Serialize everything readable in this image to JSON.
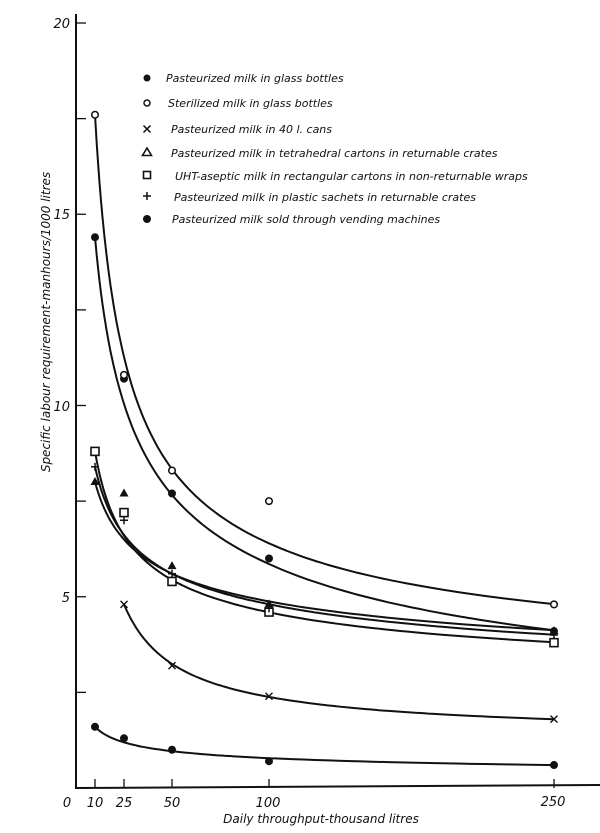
{
  "chart_data": {
    "type": "scatter",
    "title": "",
    "xlabel": "Daily throughput-thousand litres",
    "ylabel": "Specific labour requirement-manhours/1000 litres",
    "xlim": [
      0,
      260
    ],
    "ylim": [
      0,
      20
    ],
    "x_ticks": [
      0,
      10,
      25,
      50,
      100,
      250
    ],
    "x_tick_labels": [
      "0",
      "10",
      "25",
      "50",
      "100",
      "250"
    ],
    "y_ticks": [
      0,
      2.5,
      5,
      7.5,
      10,
      12.5,
      15,
      17.5,
      20
    ],
    "y_tick_labels": [
      "0",
      "",
      "5",
      "",
      "10",
      "",
      "15",
      "",
      "20"
    ],
    "y_minor_ticks": [
      1,
      2,
      3,
      4,
      6,
      7,
      8,
      9,
      11,
      12,
      13,
      14,
      16,
      17,
      18,
      19
    ],
    "grid": false,
    "legend_position": "upper-center",
    "fitted_curves": true,
    "series": [
      {
        "name": "Pasteurized milk in glass bottles",
        "marker": "filled-circle",
        "x": [
          10,
          25,
          50,
          100,
          250
        ],
        "values": [
          14.4,
          10.7,
          7.7,
          6.0,
          4.1
        ]
      },
      {
        "name": "Sterilized milk in glass bottles",
        "marker": "open-circle",
        "x": [
          10,
          25,
          50,
          100,
          250
        ],
        "values": [
          17.6,
          10.8,
          8.3,
          7.5,
          4.8
        ]
      },
      {
        "name": "Pasteurized milk in 40 l. cans",
        "marker": "x",
        "x": [
          25,
          50,
          100,
          250
        ],
        "values": [
          4.8,
          3.2,
          2.4,
          1.8
        ]
      },
      {
        "name": "Pasteurized milk in tetrahedral cartons in returnable crates",
        "marker": "filled-triangle",
        "x": [
          10,
          25,
          50,
          100,
          250
        ],
        "values": [
          8.0,
          7.7,
          5.8,
          4.8,
          4.1
        ]
      },
      {
        "name": "UHT-aseptic milk in rectangular cartons in non-returnable wraps",
        "marker": "open-square",
        "x": [
          10,
          25,
          50,
          100,
          250
        ],
        "values": [
          8.8,
          7.2,
          5.4,
          4.6,
          3.8
        ]
      },
      {
        "name": "Pasteurized milk in plastic sachets in returnable crates",
        "marker": "plus",
        "x": [
          10,
          25,
          50,
          100,
          250
        ],
        "values": [
          8.4,
          7.0,
          5.6,
          4.7,
          4.0
        ]
      },
      {
        "name": "Pasteurized milk sold through vending machines",
        "marker": "filled-circle",
        "x": [
          10,
          25,
          50,
          100,
          250
        ],
        "values": [
          1.6,
          1.3,
          1.0,
          0.7,
          0.6
        ]
      }
    ]
  },
  "legend": {
    "items": [
      {
        "symbol": "filled-circle",
        "label": "Pasteurized milk in glass bottles"
      },
      {
        "symbol": "open-circle",
        "label": "Sterilized milk in glass bottles"
      },
      {
        "symbol": "x",
        "label": "Pasteurized milk in 40 l. cans"
      },
      {
        "symbol": "filled-triangle",
        "label": "Pasteurized milk in tetrahedral cartons in returnable crates"
      },
      {
        "symbol": "open-square",
        "label": "UHT-aseptic milk in rectangular cartons in non-returnable wraps"
      },
      {
        "symbol": "plus",
        "label": "Pasteurized milk in plastic sachets in returnable crates"
      },
      {
        "symbol": "filled-circle",
        "label": "Pasteurized milk sold through vending machines"
      }
    ]
  },
  "axes": {
    "x_title": "Daily throughput-thousand litres",
    "y_title": "Specific labour requirement-manhours/1000 litres",
    "x_labels": [
      "0",
      "10",
      "25",
      "50",
      "100",
      "250"
    ],
    "y_labels": [
      "20",
      "15",
      "10",
      "5"
    ]
  },
  "colors": {
    "ink": "#111111",
    "background": "#ffffff"
  }
}
